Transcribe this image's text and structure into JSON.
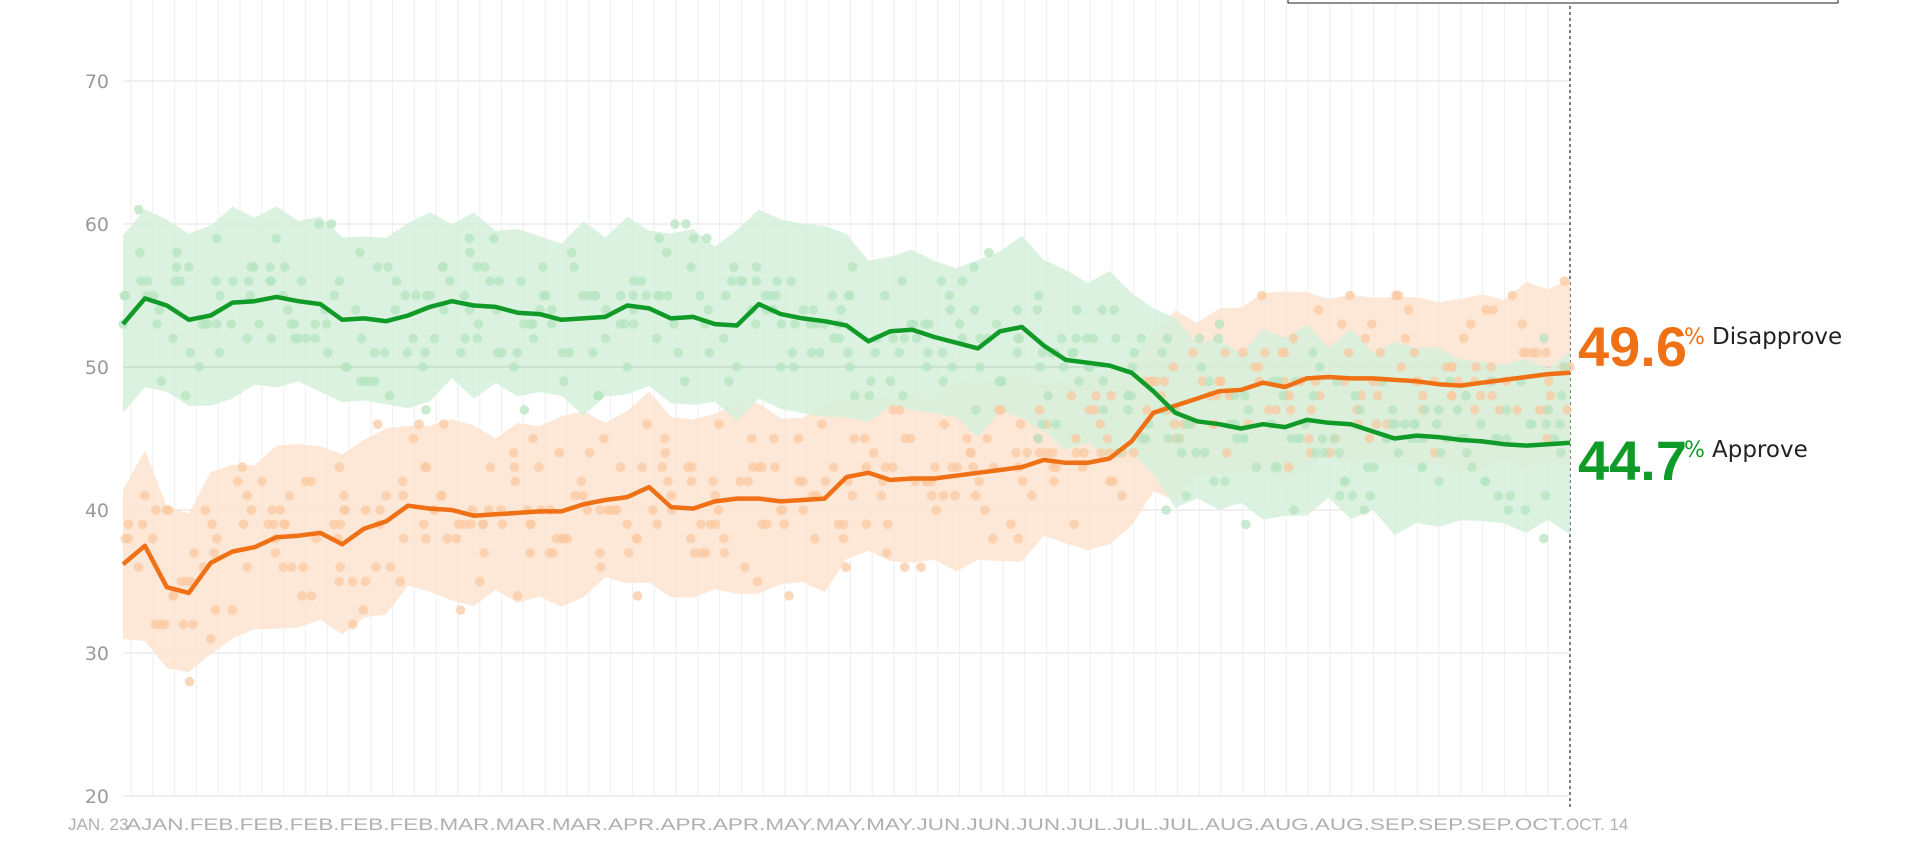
{
  "chart_data": {
    "type": "line",
    "yticks": [
      20,
      30,
      40,
      50,
      60,
      70
    ],
    "ylim": [
      20,
      75
    ],
    "x_start_label": "JAN. 23",
    "x_end_label": "OCT. 14",
    "crowded_tick_labels": "AJAN.FEB.FEB.FEB.FEB.FEB.MAR.MAR.MAR.APR.APR.APR.MAY.MAY.MAY.JUN.JUN.JUN.JUL.JUL.JUL.AUG.AUG.AUG.SEP.SEP.SEP.OCT.",
    "x": [
      0,
      4,
      8,
      12,
      16,
      20,
      24,
      28,
      32,
      36,
      40,
      44,
      48,
      52,
      56,
      60,
      64,
      68,
      72,
      76,
      80,
      84,
      88,
      92,
      96,
      100,
      104,
      108,
      112,
      116,
      120,
      124,
      128,
      132,
      136,
      140,
      144,
      148,
      152,
      156,
      160,
      164,
      168,
      172,
      176,
      180,
      184,
      188,
      192,
      196,
      200,
      204,
      208,
      212,
      216,
      220,
      224,
      228,
      232,
      236,
      240,
      244,
      248,
      252,
      256,
      260,
      264
    ],
    "series": [
      {
        "name": "Disapprove",
        "color": "#f07015",
        "values": [
          36.2,
          37.5,
          34.6,
          34.2,
          36.3,
          37.1,
          37.4,
          38.1,
          38.2,
          38.4,
          37.6,
          38.7,
          39.2,
          40.3,
          40.1,
          40.0,
          39.6,
          39.7,
          39.8,
          39.9,
          39.9,
          40.4,
          40.7,
          40.9,
          41.6,
          40.2,
          40.1,
          40.6,
          40.8,
          40.8,
          40.6,
          40.7,
          40.8,
          42.3,
          42.6,
          42.1,
          42.2,
          42.2,
          42.4,
          42.6,
          42.8,
          43.0,
          43.5,
          43.3,
          43.3,
          43.6,
          44.8,
          46.8,
          47.3,
          47.8,
          48.3,
          48.4,
          48.9,
          48.6,
          49.2,
          49.3,
          49.2,
          49.2,
          49.1,
          49.0,
          48.8,
          48.7,
          48.9,
          49.1,
          49.3,
          49.5,
          49.6
        ]
      },
      {
        "name": "Approve",
        "color": "#109a28",
        "values": [
          53.0,
          54.8,
          54.3,
          53.3,
          53.6,
          54.5,
          54.6,
          54.9,
          54.6,
          54.4,
          53.3,
          53.4,
          53.2,
          53.6,
          54.2,
          54.6,
          54.3,
          54.2,
          53.8,
          53.7,
          53.3,
          53.4,
          53.5,
          54.3,
          54.1,
          53.4,
          53.5,
          53.0,
          52.9,
          54.4,
          53.7,
          53.4,
          53.2,
          52.9,
          51.8,
          52.5,
          52.6,
          52.1,
          51.7,
          51.3,
          52.5,
          52.8,
          51.5,
          50.5,
          50.3,
          50.1,
          49.6,
          48.3,
          46.8,
          46.2,
          46.0,
          45.7,
          46.0,
          45.8,
          46.3,
          46.1,
          46.0,
          45.5,
          45.0,
          45.2,
          45.1,
          44.9,
          44.8,
          44.6,
          44.5,
          44.6,
          44.7
        ]
      }
    ],
    "threshold_line": 50,
    "current": {
      "disapprove": {
        "value": "49.6",
        "pct": "%",
        "label": "Disapprove",
        "color": "#f07015"
      },
      "approve": {
        "value": "44.7",
        "pct": "%",
        "label": "Approve",
        "color": "#109a28"
      }
    },
    "band_halfwidth": 6,
    "poll_scatter_seed": 7
  }
}
